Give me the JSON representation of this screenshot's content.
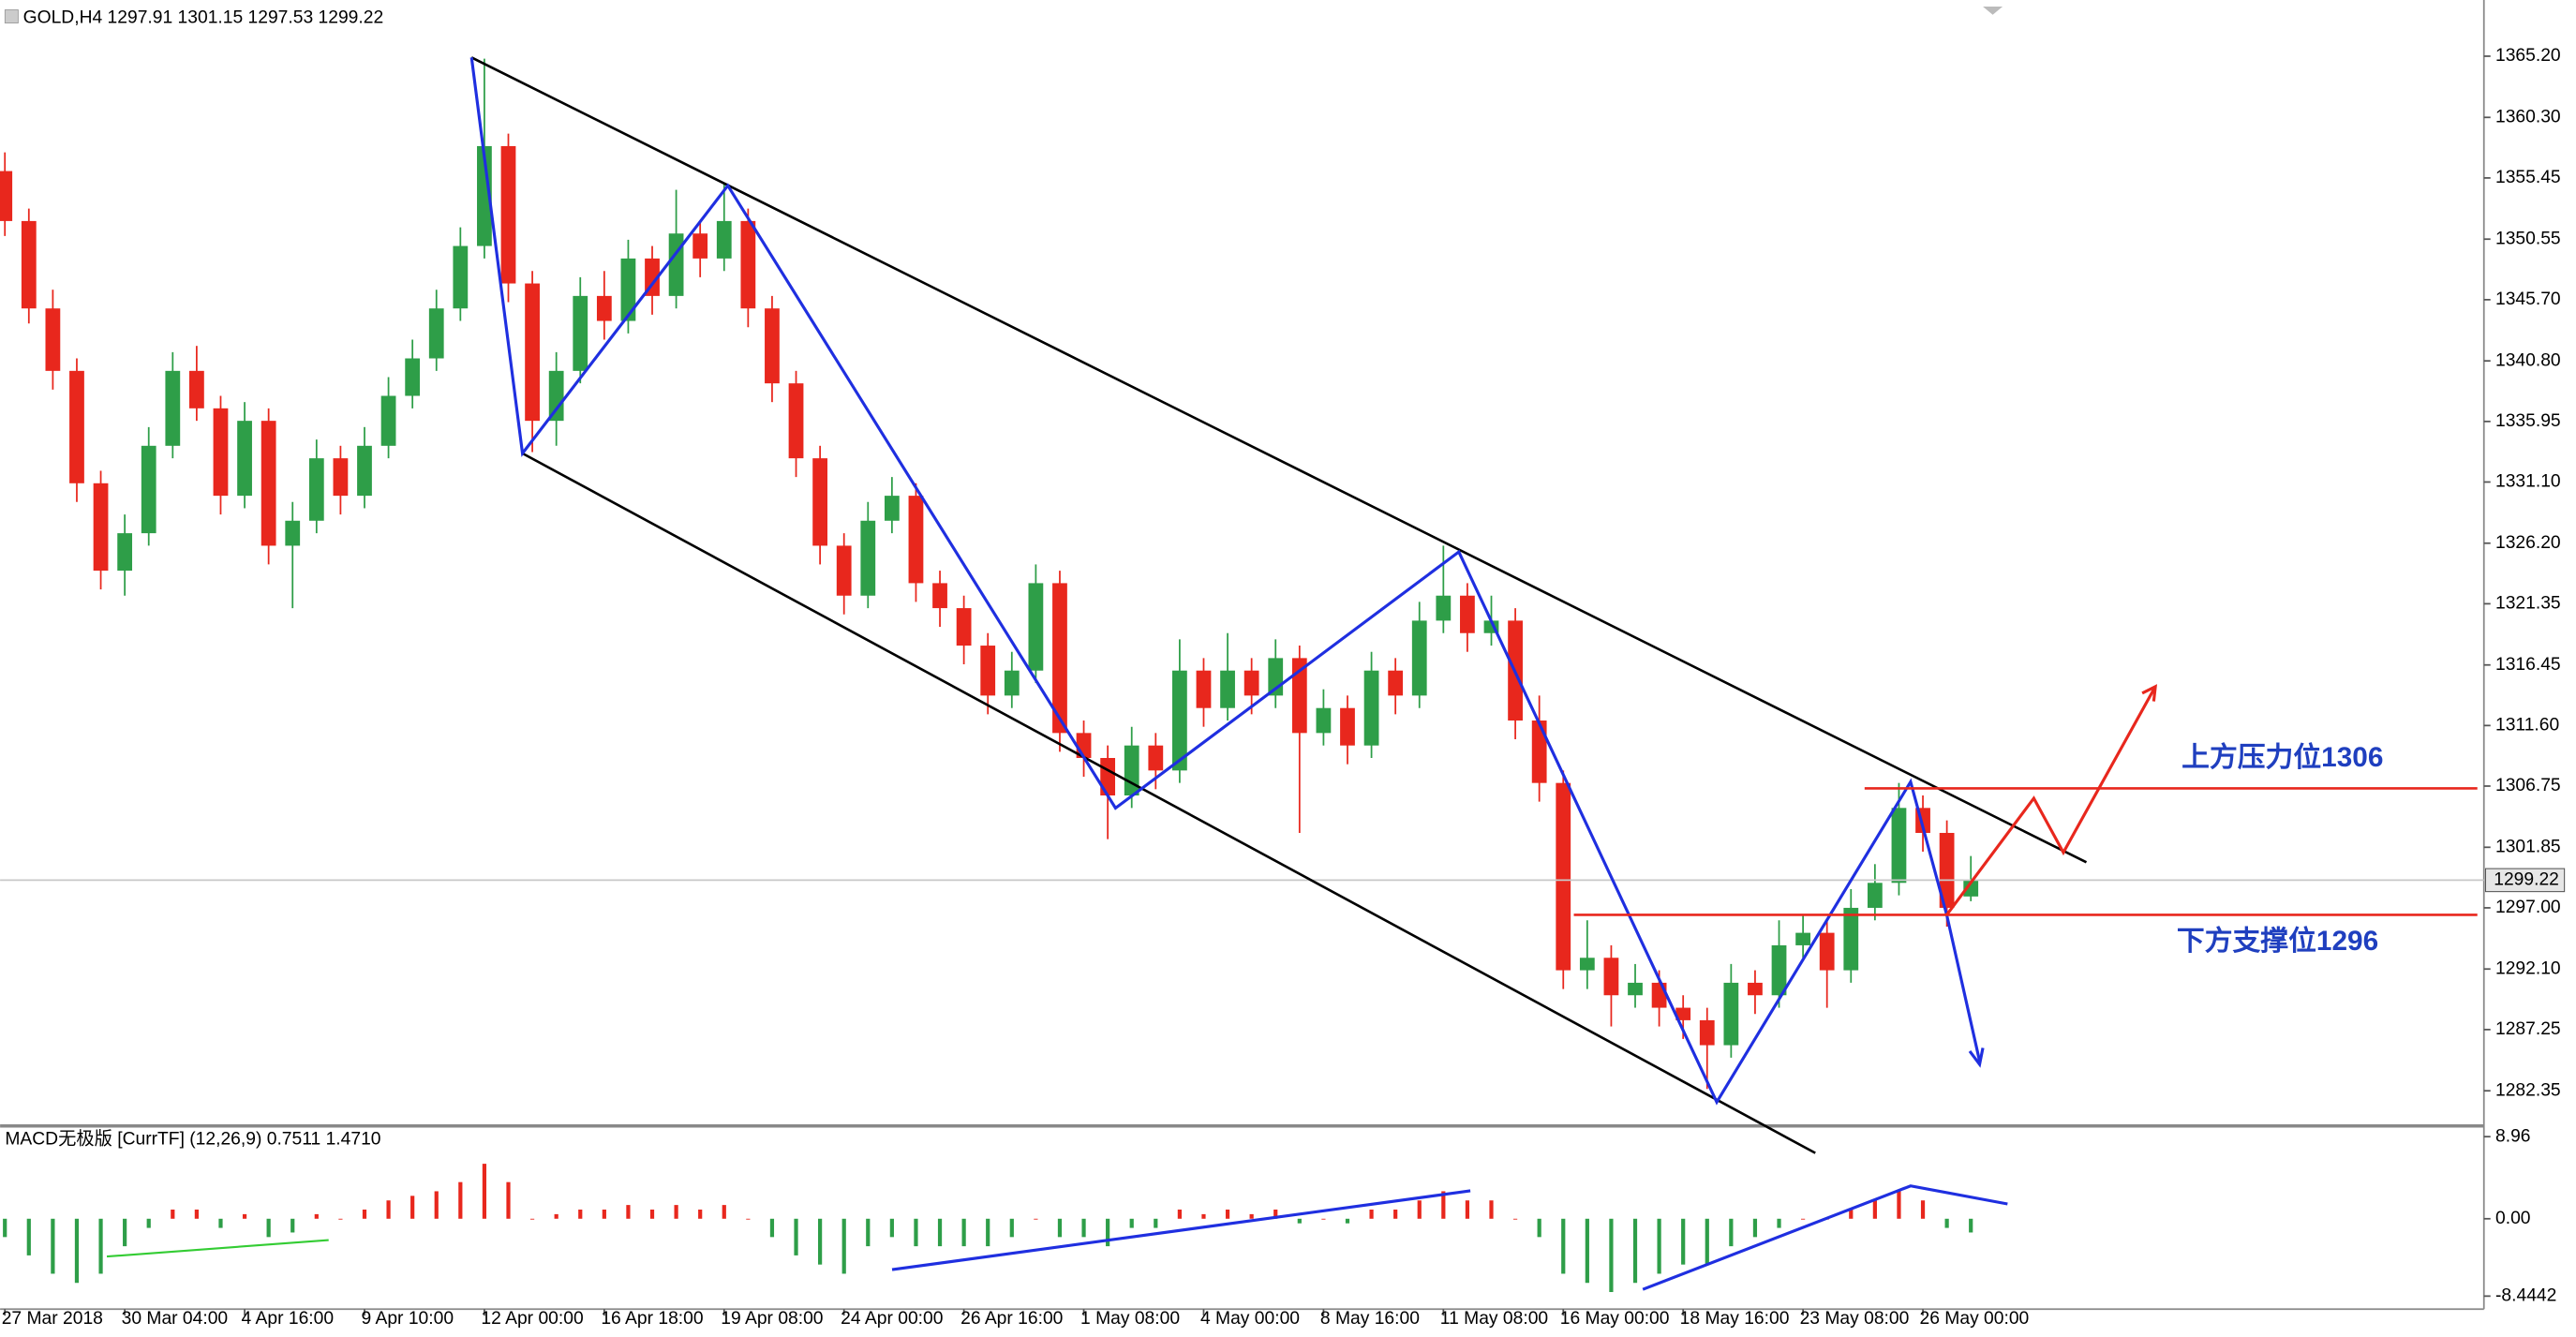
{
  "chart_data": [
    {
      "type": "candlestick",
      "title": "GOLD,H4  1297.91 1301.15 1297.53 1299.22",
      "up_color": "#2e9e48",
      "down_color": "#e8271d",
      "ylim": [
        1279.6,
        1369.7
      ],
      "yticks": [
        {
          "value": 1365.2,
          "label": "1365.20"
        },
        {
          "value": 1360.3,
          "label": "1360.30"
        },
        1355.45,
        1350.55,
        {
          "value": 1345.7,
          "label": "1345.70"
        },
        {
          "value": 1340.8,
          "label": "1340.80"
        },
        1335.95,
        {
          "value": 1331.1,
          "label": "1331.10"
        },
        {
          "value": 1326.2,
          "label": "1326.20"
        },
        1321.35,
        1316.45,
        {
          "value": 1311.6,
          "label": "1311.60"
        },
        1306.75,
        1301.85,
        {
          "value": 1297,
          "label": "1297.00"
        },
        {
          "value": 1292.1,
          "label": "1292.10"
        },
        1287.25,
        1282.35
      ],
      "xlim": [
        -0.2,
        103.4
      ],
      "xticks": [
        {
          "value": 0,
          "label": "27 Mar 2018"
        },
        {
          "value": 5,
          "label": "30 Mar 04:00"
        },
        {
          "value": 10,
          "label": "4 Apr 16:00"
        },
        {
          "value": 15,
          "label": "9 Apr 10:00"
        },
        {
          "value": 20,
          "label": "12 Apr 00:00"
        },
        {
          "value": 25,
          "label": "16 Apr 18:00"
        },
        {
          "value": 30,
          "label": "19 Apr 08:00"
        },
        {
          "value": 35,
          "label": "24 Apr 00:00"
        },
        {
          "value": 40,
          "label": "26 Apr 16:00"
        },
        {
          "value": 45,
          "label": "1 May 08:00"
        },
        {
          "value": 50,
          "label": "4 May 00:00"
        },
        {
          "value": 55,
          "label": "8 May 16:00"
        },
        {
          "value": 60,
          "label": "11 May 08:00"
        },
        {
          "value": 65,
          "label": "16 May 00:00"
        },
        {
          "value": 70,
          "label": "18 May 16:00"
        },
        {
          "value": 75,
          "label": "23 May 08:00"
        },
        {
          "value": 80,
          "label": "26 May 00:00"
        }
      ],
      "last_price": 1299.22,
      "annotations": [
        "上方压力位1306",
        "下方支撑位1296"
      ],
      "ohlc": [
        [
          1356,
          1357.5,
          1350.8,
          1352
        ],
        [
          1352,
          1353,
          1343.8,
          1345
        ],
        [
          1345,
          1346.5,
          1338.5,
          1340
        ],
        [
          1340,
          1341,
          1329.5,
          1331
        ],
        [
          1331,
          1332,
          1322.5,
          1324
        ],
        [
          1324,
          1328.5,
          1322,
          1327
        ],
        [
          1327,
          1335.5,
          1326,
          1334
        ],
        [
          1334,
          1341.5,
          1333,
          1340
        ],
        [
          1340,
          1342,
          1336,
          1337
        ],
        [
          1337,
          1338,
          1328.5,
          1330
        ],
        [
          1330,
          1337.5,
          1329,
          1336
        ],
        [
          1336,
          1337,
          1324.5,
          1326
        ],
        [
          1326,
          1329.5,
          1321,
          1328
        ],
        [
          1328,
          1334.5,
          1327,
          1333
        ],
        [
          1333,
          1334,
          1328.5,
          1330
        ],
        [
          1330,
          1335.5,
          1329,
          1334
        ],
        [
          1334,
          1339.5,
          1333,
          1338
        ],
        [
          1338,
          1342.5,
          1337,
          1341
        ],
        [
          1341,
          1346.5,
          1340,
          1345
        ],
        [
          1345,
          1351.5,
          1344,
          1350
        ],
        [
          1350,
          1365,
          1349,
          1358
        ],
        [
          1358,
          1359,
          1345.5,
          1347
        ],
        [
          1347,
          1348,
          1333.5,
          1336
        ],
        [
          1336,
          1341.5,
          1334,
          1340
        ],
        [
          1340,
          1347.5,
          1339,
          1346
        ],
        [
          1346,
          1348,
          1342.5,
          1344
        ],
        [
          1344,
          1350.5,
          1343,
          1349
        ],
        [
          1349,
          1350,
          1344.5,
          1346
        ],
        [
          1346,
          1354.5,
          1345,
          1351
        ],
        [
          1351,
          1352,
          1347.5,
          1349
        ],
        [
          1349,
          1355,
          1348,
          1352
        ],
        [
          1352,
          1353,
          1343.5,
          1345
        ],
        [
          1345,
          1346,
          1337.5,
          1339
        ],
        [
          1339,
          1340,
          1331.5,
          1333
        ],
        [
          1333,
          1334,
          1324.5,
          1326
        ],
        [
          1326,
          1327,
          1320.5,
          1322
        ],
        [
          1322,
          1329.5,
          1321,
          1328
        ],
        [
          1328,
          1331.5,
          1327,
          1330
        ],
        [
          1330,
          1331,
          1321.5,
          1323
        ],
        [
          1323,
          1324,
          1319.5,
          1321
        ],
        [
          1321,
          1322,
          1316.5,
          1318
        ],
        [
          1318,
          1319,
          1312.5,
          1314
        ],
        [
          1314,
          1317.5,
          1313,
          1316
        ],
        [
          1316,
          1324.5,
          1315,
          1323
        ],
        [
          1323,
          1324,
          1309.5,
          1311
        ],
        [
          1311,
          1312,
          1307.5,
          1309
        ],
        [
          1309,
          1310,
          1302.5,
          1306
        ],
        [
          1306,
          1311.5,
          1305,
          1310
        ],
        [
          1310,
          1311,
          1306.5,
          1308
        ],
        [
          1308,
          1318.5,
          1307,
          1316
        ],
        [
          1316,
          1317,
          1311.5,
          1313
        ],
        [
          1313,
          1319,
          1312,
          1316
        ],
        [
          1316,
          1317,
          1312.5,
          1314
        ],
        [
          1314,
          1318.5,
          1313,
          1317
        ],
        [
          1317,
          1318,
          1303,
          1311
        ],
        [
          1311,
          1314.5,
          1310,
          1313
        ],
        [
          1313,
          1314,
          1308.5,
          1310
        ],
        [
          1310,
          1317.5,
          1309,
          1316
        ],
        [
          1316,
          1317,
          1312.5,
          1314
        ],
        [
          1314,
          1321.5,
          1313,
          1320
        ],
        [
          1320,
          1326,
          1319,
          1322
        ],
        [
          1322,
          1323,
          1317.5,
          1319
        ],
        [
          1319,
          1322,
          1318,
          1320
        ],
        [
          1320,
          1321,
          1310.5,
          1312
        ],
        [
          1312,
          1314,
          1305.5,
          1307
        ],
        [
          1307,
          1308,
          1290.5,
          1292
        ],
        [
          1292,
          1296,
          1290.5,
          1293
        ],
        [
          1293,
          1294,
          1287.5,
          1290
        ],
        [
          1290,
          1292.5,
          1289,
          1291
        ],
        [
          1291,
          1292,
          1287.5,
          1289
        ],
        [
          1289,
          1290,
          1286.5,
          1288
        ],
        [
          1288,
          1289,
          1282.5,
          1286
        ],
        [
          1286,
          1292.5,
          1285,
          1291
        ],
        [
          1291,
          1292,
          1288.5,
          1290
        ],
        [
          1290,
          1296,
          1289,
          1294
        ],
        [
          1294,
          1296.5,
          1293,
          1295
        ],
        [
          1295,
          1296,
          1289,
          1292
        ],
        [
          1292,
          1298.5,
          1291,
          1297
        ],
        [
          1297,
          1300.5,
          1296,
          1299
        ],
        [
          1299,
          1307,
          1298,
          1305
        ],
        [
          1305,
          1306,
          1301.5,
          1303
        ],
        [
          1303,
          1304,
          1295.5,
          1297
        ],
        [
          1297.91,
          1301.15,
          1297.53,
          1299.22
        ]
      ]
    },
    {
      "type": "bar",
      "title": "MACD无极版 [CurrTF] (12,26,9) 0.7511 1.4710",
      "pos_color": "#e8271d",
      "neg_color": "#2e9e48",
      "ylim": [
        -9.86,
        10.04
      ],
      "yticks": [
        8.96,
        {
          "value": 0,
          "label": "0.00"
        },
        -8.4442
      ],
      "xlim": [
        -0.2,
        103.4
      ],
      "values": [
        -2,
        -4,
        -6,
        -7,
        -6,
        -3,
        -1,
        1,
        1,
        -1,
        0.5,
        -2,
        -1.5,
        0.5,
        0,
        1,
        2,
        2.5,
        3,
        4,
        6,
        4,
        0,
        0.5,
        1,
        1,
        1.5,
        1,
        1.5,
        1,
        1.5,
        0,
        -2,
        -4,
        -5,
        -6,
        -3,
        -2,
        -3,
        -3,
        -3,
        -3,
        -2,
        0,
        -2,
        -2,
        -3,
        -1,
        -1,
        1,
        0.5,
        1,
        0.5,
        1,
        -0.5,
        0,
        -0.5,
        1,
        1,
        2,
        3,
        2,
        2,
        0,
        -2,
        -6,
        -7,
        -8,
        -7,
        -6,
        -5,
        -5,
        -3,
        -2,
        -1,
        0,
        0,
        1,
        2,
        3,
        2,
        -1,
        -1.5
      ]
    }
  ]
}
